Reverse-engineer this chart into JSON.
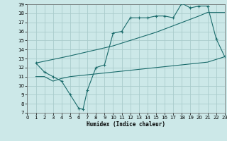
{
  "title": "",
  "xlabel": "Humidex (Indice chaleur)",
  "bg_color": "#cce8e8",
  "grid_color": "#aacccc",
  "line_color": "#1a6b6b",
  "xlim": [
    0,
    23
  ],
  "ylim": [
    7,
    19
  ],
  "xticks": [
    0,
    1,
    2,
    3,
    4,
    5,
    6,
    7,
    8,
    9,
    10,
    11,
    12,
    13,
    14,
    15,
    16,
    17,
    18,
    19,
    20,
    21,
    22,
    23
  ],
  "yticks": [
    7,
    8,
    9,
    10,
    11,
    12,
    13,
    14,
    15,
    16,
    17,
    18,
    19
  ],
  "curve1_x": [
    1,
    2,
    3,
    4,
    5,
    6,
    6.5,
    7,
    8,
    9,
    10,
    11,
    12,
    13,
    14,
    15,
    16,
    17,
    18,
    19,
    20,
    21,
    22,
    23
  ],
  "curve1_y": [
    12.5,
    11.5,
    11.0,
    10.5,
    9.0,
    7.5,
    7.4,
    9.5,
    12.0,
    12.3,
    15.8,
    16.0,
    17.5,
    17.5,
    17.5,
    17.7,
    17.7,
    17.5,
    19.1,
    18.6,
    18.8,
    18.8,
    15.2,
    13.2
  ],
  "curve2_x": [
    1,
    5,
    10,
    15,
    20,
    21,
    22,
    23
  ],
  "curve2_y": [
    12.5,
    13.3,
    14.4,
    15.9,
    17.7,
    18.1,
    18.1,
    18.1
  ],
  "curve3_x": [
    1,
    2,
    3,
    4,
    5,
    6,
    7,
    8,
    9,
    10,
    11,
    12,
    13,
    14,
    15,
    16,
    17,
    18,
    19,
    20,
    21,
    22,
    23
  ],
  "curve3_y": [
    11.0,
    11.0,
    10.5,
    10.8,
    11.0,
    11.1,
    11.2,
    11.3,
    11.4,
    11.5,
    11.6,
    11.7,
    11.8,
    11.9,
    12.0,
    12.1,
    12.2,
    12.3,
    12.4,
    12.5,
    12.6,
    12.9,
    13.2
  ]
}
